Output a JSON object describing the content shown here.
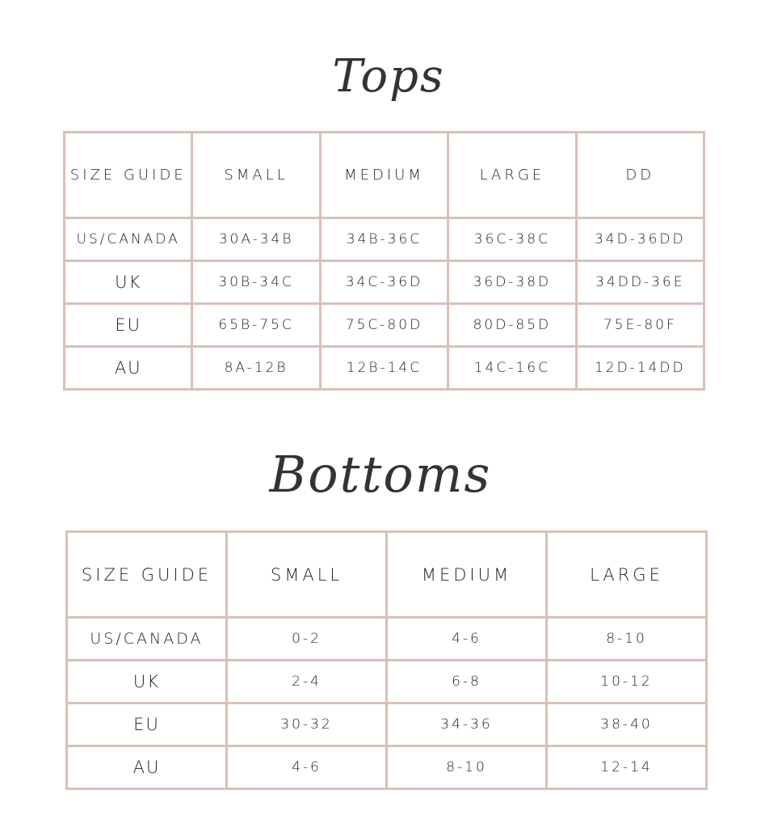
{
  "tops": {
    "title": "Tops",
    "headers": [
      "SIZE GUIDE",
      "SMALL",
      "MEDIUM",
      "LARGE",
      "DD"
    ],
    "rows": [
      [
        "US/CANADA",
        "30A-34B",
        "34B-36C",
        "36C-38C",
        "34D-36DD"
      ],
      [
        "UK",
        "30B-34C",
        "34C-36D",
        "36D-38D",
        "34DD-36E"
      ],
      [
        "EU",
        "65B-75C",
        "75C-80D",
        "80D-85D",
        "75E-80F"
      ],
      [
        "AU",
        "8A-12B",
        "12B-14C",
        "14C-16C",
        "12D-14DD"
      ]
    ]
  },
  "bottoms": {
    "title": "Bottoms",
    "headers": [
      "SIZE GUIDE",
      "SMALL",
      "MEDIUM",
      "LARGE"
    ],
    "rows": [
      [
        "US/CANADA",
        "0-2",
        "4-6",
        "8-10"
      ],
      [
        "UK",
        "2-4",
        "6-8",
        "10-12"
      ],
      [
        "EU",
        "30-32",
        "34-36",
        "38-40"
      ],
      [
        "AU",
        "4-6",
        "8-10",
        "12-14"
      ]
    ]
  },
  "colors": {
    "border": "#d9c0b6",
    "text": "#222222"
  }
}
